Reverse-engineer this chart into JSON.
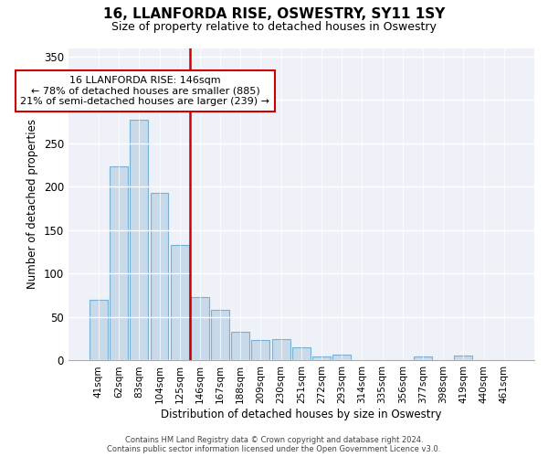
{
  "title": "16, LLANFORDA RISE, OSWESTRY, SY11 1SY",
  "subtitle": "Size of property relative to detached houses in Oswestry",
  "xlabel": "Distribution of detached houses by size in Oswestry",
  "ylabel": "Number of detached properties",
  "bar_labels": [
    "41sqm",
    "62sqm",
    "83sqm",
    "104sqm",
    "125sqm",
    "146sqm",
    "167sqm",
    "188sqm",
    "209sqm",
    "230sqm",
    "251sqm",
    "272sqm",
    "293sqm",
    "314sqm",
    "335sqm",
    "356sqm",
    "377sqm",
    "398sqm",
    "419sqm",
    "440sqm",
    "461sqm"
  ],
  "bar_values": [
    70,
    224,
    277,
    193,
    133,
    73,
    58,
    33,
    24,
    25,
    15,
    5,
    7,
    0,
    0,
    0,
    5,
    0,
    6,
    0,
    1
  ],
  "bar_color": "#c8d9ea",
  "bar_edge_color": "#7aafd4",
  "highlight_index": 5,
  "highlight_line_color": "#cc0000",
  "ylim": [
    0,
    360
  ],
  "yticks": [
    0,
    50,
    100,
    150,
    200,
    250,
    300,
    350
  ],
  "annotation_text": "16 LLANFORDA RISE: 146sqm\n← 78% of detached houses are smaller (885)\n21% of semi-detached houses are larger (239) →",
  "annotation_box_color": "#ffffff",
  "annotation_box_edge": "#cc0000",
  "footer_line1": "Contains HM Land Registry data © Crown copyright and database right 2024.",
  "footer_line2": "Contains public sector information licensed under the Open Government Licence v3.0.",
  "background_color": "#ffffff",
  "plot_bg_color": "#eef2f8"
}
